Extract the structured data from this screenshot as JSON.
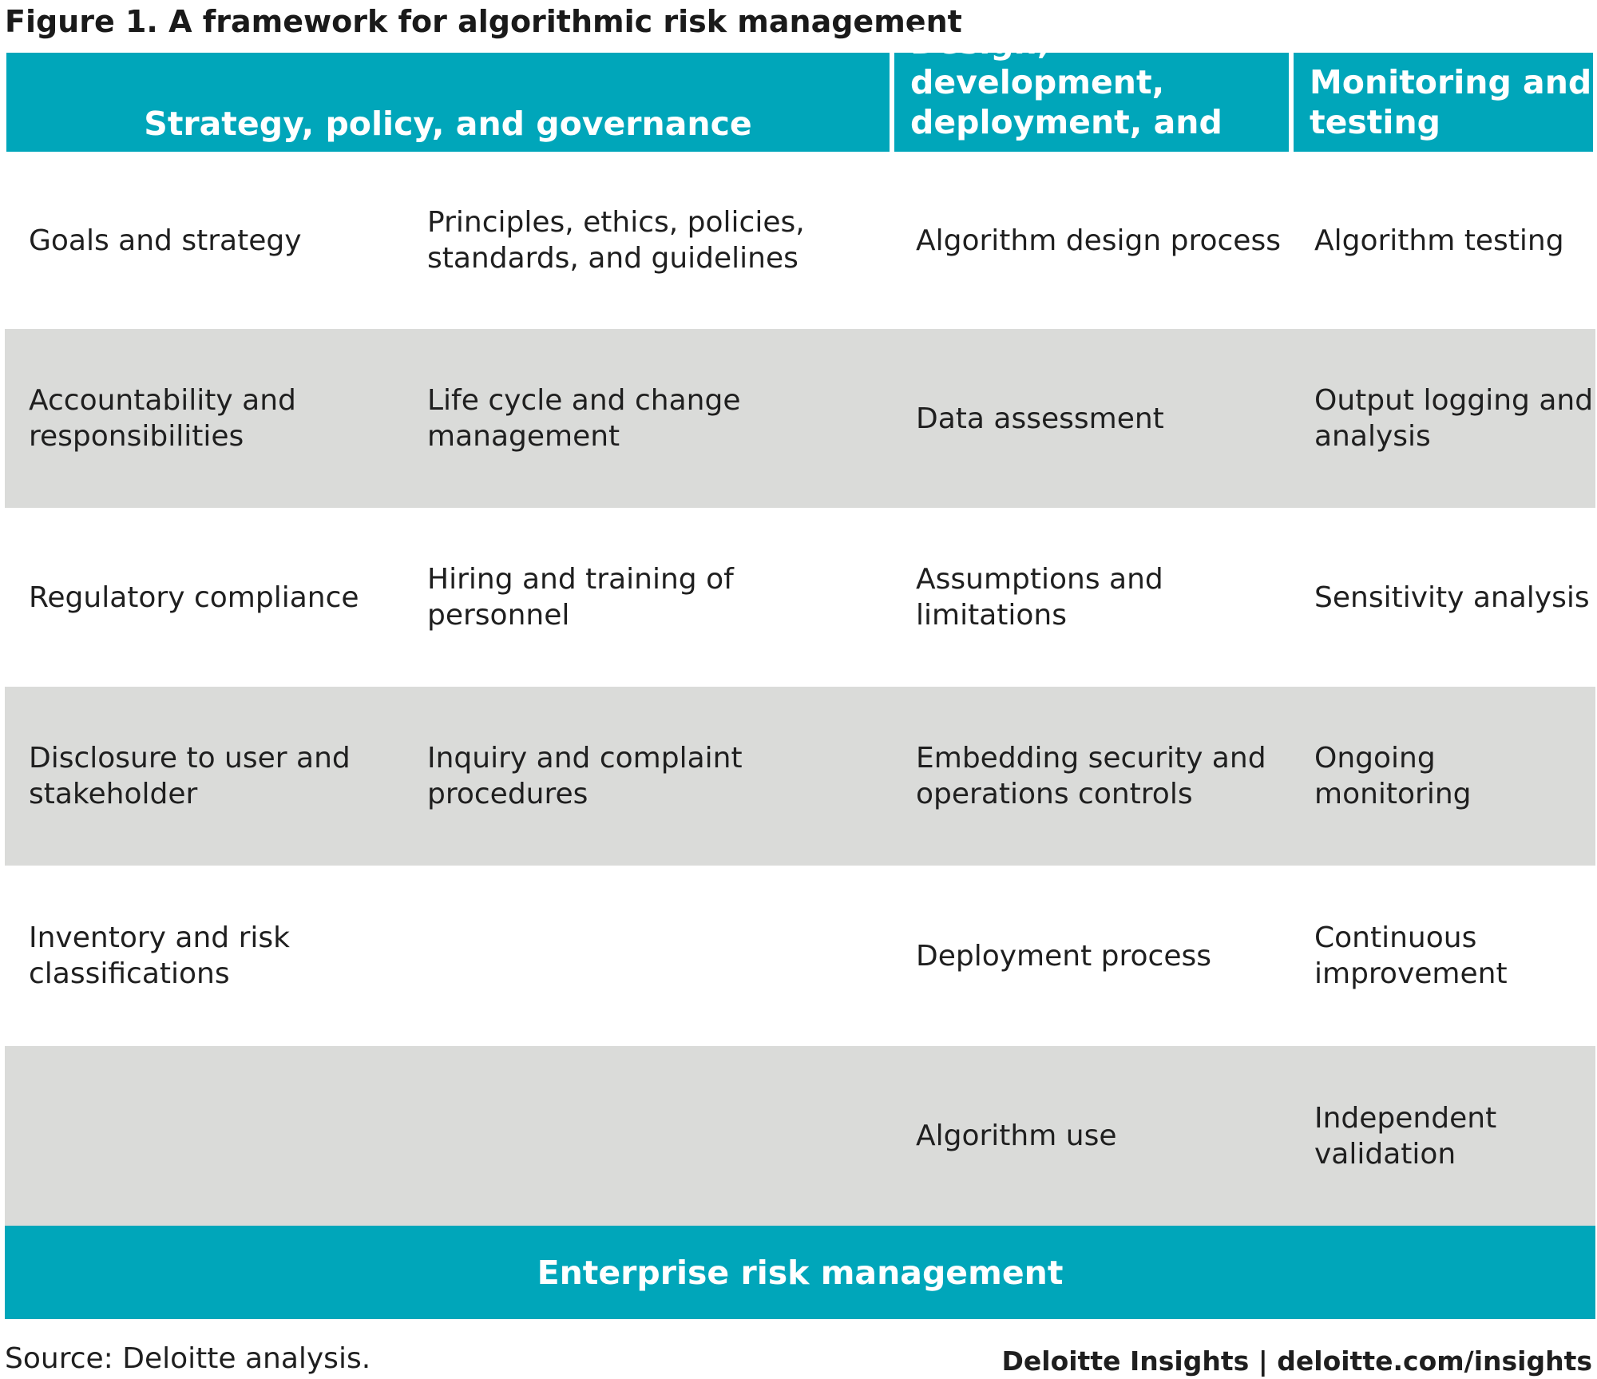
{
  "title": "Figure 1. A framework for algorithmic risk management",
  "headers": {
    "strategy": "Strategy, policy, and governance",
    "design": "Design, development, deployment, and use",
    "monitoring": "Monitoring and testing"
  },
  "rows": [
    {
      "c1": "Goals and strategy",
      "c2": "Principles, ethics, policies, standards, and guidelines",
      "c3": "Algorithm design process",
      "c4": "Algorithm testing"
    },
    {
      "c1": "Accountability and responsibilities",
      "c2": "Life cycle and change management",
      "c3": "Data assessment",
      "c4": "Output logging and analysis"
    },
    {
      "c1": "Regulatory compliance",
      "c2": "Hiring and training of personnel",
      "c3": "Assumptions and limitations",
      "c4": "Sensitivity analysis"
    },
    {
      "c1": "Disclosure to user and stakeholder",
      "c2": "Inquiry and complaint procedures",
      "c3": "Embedding security and operations controls",
      "c4": "Ongoing monitoring"
    },
    {
      "c1": "Inventory and risk classifications",
      "c2": "",
      "c3": "Deployment process",
      "c4": "Continuous improvement"
    },
    {
      "c1": "",
      "c2": "",
      "c3": "Algorithm use",
      "c4": "Independent validation"
    }
  ],
  "footer_band": "Enterprise risk management",
  "source": "Source: Deloitte analysis.",
  "brand": "Deloitte Insights | deloitte.com/insights",
  "colors": {
    "accent": "#00A6BA",
    "shade": "#DADBD9",
    "text": "#1a1a1a"
  }
}
